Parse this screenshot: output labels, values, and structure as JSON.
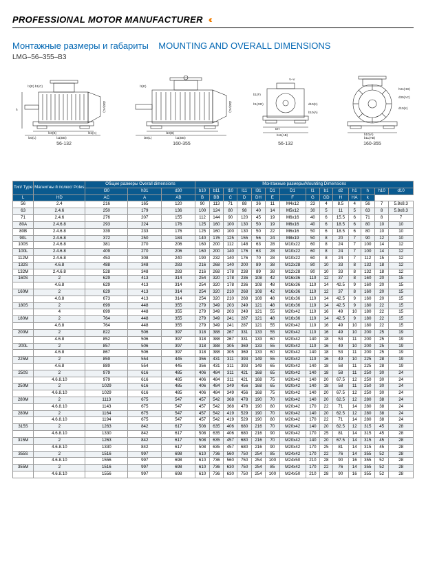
{
  "header": {
    "title": "PROFESSIONAL MOTOR MANUFACTURER",
    "arrows": "‹‹‹"
  },
  "subtitle_ru": "Монтажные размеры и габариты",
  "subtitle_en": "MOUNTING AND OVERALL DIMENSIONS",
  "model": "LMG–56–355–B3",
  "drawings": {
    "labels": [
      "56-132",
      "160-355",
      "56-132",
      "160-355"
    ]
  },
  "table": {
    "group_headers": {
      "overall": "Общие размеры\\nOverall dimensions",
      "mounting": "Монтажные размеры/Mounting Dimensions"
    },
    "columns_top": [
      "Тип/\\nType",
      "Магнитны\\nй полюс/\\nPoles",
      "l30",
      "h31",
      "d30",
      "b10",
      "b11",
      "l10",
      "l11",
      "l31",
      "D1",
      "D1",
      "l1",
      "b1",
      "d2",
      "h1",
      "h",
      "h10",
      "d10"
    ],
    "columns_sub": [
      "",
      "",
      "L",
      "HD",
      "AC",
      "A",
      "AB",
      "B",
      "BB",
      "C",
      "D",
      "DH",
      "E",
      "F",
      "G",
      "GD",
      "H",
      "HA",
      "k"
    ],
    "rows": [
      [
        "56",
        "2.4",
        "216",
        "165",
        "120",
        "90",
        "113",
        "71",
        "88",
        "36",
        "11",
        "M4x12",
        "23",
        "4",
        "8.5",
        "4",
        "56",
        "7",
        "5.8x8.3"
      ],
      [
        "63",
        "2.4.6",
        "250",
        "179",
        "136",
        "100",
        "124",
        "80",
        "98",
        "40",
        "14",
        "M5x12",
        "30",
        "5",
        "11",
        "5",
        "63",
        "8",
        "5.8x8.3"
      ],
      [
        "71",
        "2.4.6",
        "276",
        "207",
        "155",
        "112",
        "144",
        "90",
        "120",
        "45",
        "19",
        "M6x16",
        "40",
        "6",
        "15.5",
        "6",
        "71",
        "8",
        "7"
      ],
      [
        "80A",
        "2.4.6.8",
        "293",
        "224",
        "176",
        "125",
        "160",
        "100",
        "130",
        "50",
        "19",
        "M6x16",
        "40",
        "6",
        "18.5",
        "6",
        "80",
        "10",
        "10"
      ],
      [
        "80B",
        "2.4.6.8",
        "339",
        "233",
        "176",
        "125",
        "160",
        "100",
        "130",
        "50",
        "22",
        "M6x16",
        "50",
        "6",
        "18.5",
        "6",
        "80",
        "10",
        "10"
      ],
      [
        "90L",
        "2.4.6.8",
        "372",
        "250",
        "184",
        "140",
        "176",
        "125",
        "155",
        "56",
        "24",
        "M8x19",
        "50",
        "8",
        "20",
        "7",
        "90",
        "12",
        "10"
      ],
      [
        "100S",
        "2.4.6.8",
        "381",
        "270",
        "206",
        "160",
        "200",
        "112",
        "148",
        "63",
        "28",
        "M10x22",
        "60",
        "8",
        "24",
        "7",
        "100",
        "14",
        "12"
      ],
      [
        "100L",
        "2.4.6.8",
        "409",
        "270",
        "206",
        "160",
        "200",
        "140",
        "176",
        "63",
        "28",
        "M10x22",
        "60",
        "8",
        "24",
        "7",
        "100",
        "14",
        "12"
      ],
      [
        "112M",
        "2.4.6.8",
        "453",
        "308",
        "240",
        "190",
        "232",
        "140",
        "176",
        "70",
        "28",
        "M10x22",
        "60",
        "8",
        "24",
        "7",
        "112",
        "15",
        "12"
      ],
      [
        "132S",
        "4.6.8",
        "488",
        "348",
        "283",
        "216",
        "268",
        "140",
        "200",
        "89",
        "38",
        "M12x28",
        "80",
        "10",
        "33",
        "8",
        "132",
        "18",
        "12"
      ],
      [
        "132M",
        "2.4.6.8",
        "528",
        "348",
        "283",
        "216",
        "268",
        "178",
        "238",
        "89",
        "38",
        "M12x28",
        "80",
        "10",
        "33",
        "8",
        "132",
        "18",
        "12"
      ],
      [
        "160S",
        "2",
        "629",
        "413",
        "314",
        "254",
        "320",
        "178",
        "236",
        "108",
        "42",
        "M16x36",
        "110",
        "12",
        "37",
        "8",
        "160",
        "20",
        "15"
      ],
      [
        "",
        "4.6.8",
        "629",
        "413",
        "314",
        "254",
        "320",
        "178",
        "236",
        "108",
        "48",
        "M16x36",
        "110",
        "14",
        "42.5",
        "9",
        "160",
        "20",
        "15"
      ],
      [
        "160M",
        "2",
        "629",
        "413",
        "314",
        "254",
        "320",
        "210",
        "268",
        "108",
        "42",
        "M16x36",
        "110",
        "12",
        "37",
        "8",
        "160",
        "20",
        "15"
      ],
      [
        "",
        "4.6.8",
        "673",
        "413",
        "314",
        "254",
        "320",
        "210",
        "268",
        "108",
        "48",
        "M16x36",
        "110",
        "14",
        "42.5",
        "9",
        "160",
        "20",
        "15"
      ],
      [
        "180S",
        "2",
        "699",
        "448",
        "355",
        "279",
        "349",
        "203",
        "249",
        "121",
        "48",
        "M16x36",
        "110",
        "14",
        "42.5",
        "9",
        "180",
        "22",
        "15"
      ],
      [
        "",
        "4",
        "699",
        "448",
        "355",
        "279",
        "349",
        "203",
        "249",
        "121",
        "55",
        "M20x42",
        "110",
        "16",
        "49",
        "10",
        "180",
        "22",
        "15"
      ],
      [
        "180M",
        "2",
        "764",
        "448",
        "355",
        "279",
        "349",
        "241",
        "287",
        "121",
        "48",
        "M16x36",
        "110",
        "14",
        "42.5",
        "9",
        "180",
        "22",
        "15"
      ],
      [
        "",
        "4.6.8",
        "764",
        "448",
        "355",
        "279",
        "349",
        "241",
        "287",
        "121",
        "55",
        "M20x42",
        "110",
        "16",
        "49",
        "10",
        "180",
        "22",
        "15"
      ],
      [
        "200M",
        "2",
        "822",
        "506",
        "397",
        "318",
        "388",
        "267",
        "331",
        "133",
        "55",
        "M20x42",
        "110",
        "16",
        "49",
        "10",
        "200",
        "25",
        "19"
      ],
      [
        "",
        "4.6.8",
        "852",
        "506",
        "397",
        "318",
        "388",
        "267",
        "331",
        "133",
        "60",
        "M20x42",
        "140",
        "18",
        "53",
        "11",
        "200",
        "25",
        "19"
      ],
      [
        "200L",
        "2",
        "857",
        "506",
        "397",
        "318",
        "388",
        "305",
        "369",
        "133",
        "55",
        "M20x42",
        "110",
        "16",
        "49",
        "10",
        "200",
        "25",
        "19"
      ],
      [
        "",
        "4.6.8",
        "867",
        "506",
        "397",
        "318",
        "388",
        "305",
        "369",
        "133",
        "60",
        "M20x42",
        "140",
        "18",
        "53",
        "11",
        "200",
        "25",
        "19"
      ],
      [
        "225M",
        "2",
        "859",
        "554",
        "445",
        "356",
        "431",
        "311",
        "393",
        "149",
        "55",
        "M20x42",
        "110",
        "16",
        "49",
        "10",
        "225",
        "28",
        "19"
      ],
      [
        "",
        "4.6.8",
        "889",
        "554",
        "445",
        "356",
        "431",
        "311",
        "393",
        "149",
        "65",
        "M20x42",
        "140",
        "18",
        "58",
        "11",
        "225",
        "28",
        "19"
      ],
      [
        "250S",
        "2",
        "979",
        "616",
        "485",
        "406",
        "484",
        "311",
        "421",
        "168",
        "65",
        "M20x42",
        "140",
        "18",
        "58",
        "11",
        "250",
        "30",
        "24"
      ],
      [
        "",
        "4.6.8.10",
        "979",
        "616",
        "485",
        "406",
        "484",
        "311",
        "421",
        "168",
        "75",
        "M20x42",
        "140",
        "20",
        "67.5",
        "12",
        "250",
        "30",
        "24"
      ],
      [
        "250M",
        "2",
        "1029",
        "616",
        "485",
        "406",
        "484",
        "349",
        "456",
        "168",
        "65",
        "M20x42",
        "140",
        "18",
        "58",
        "11",
        "250",
        "30",
        "24"
      ],
      [
        "",
        "4.6.8.10",
        "1029",
        "616",
        "485",
        "406",
        "484",
        "349",
        "456",
        "168",
        "75",
        "M20x42",
        "140",
        "20",
        "67.5",
        "12",
        "250",
        "30",
        "24"
      ],
      [
        "280M",
        "2",
        "1113",
        "675",
        "547",
        "457",
        "542",
        "368",
        "478",
        "190",
        "70",
        "M20x42",
        "140",
        "20",
        "62.5",
        "12",
        "280",
        "38",
        "24"
      ],
      [
        "",
        "4.6.8.10",
        "1143",
        "675",
        "547",
        "457",
        "542",
        "368",
        "478",
        "190",
        "80",
        "M20x42",
        "170",
        "22",
        "71",
        "14",
        "280",
        "38",
        "24"
      ],
      [
        "280M",
        "2",
        "1164",
        "675",
        "547",
        "457",
        "542",
        "419",
        "529",
        "190",
        "70",
        "M20x42",
        "140",
        "20",
        "62.5",
        "12",
        "280",
        "38",
        "24"
      ],
      [
        "",
        "4.6.8.10",
        "1194",
        "675",
        "547",
        "457",
        "542",
        "419",
        "529",
        "190",
        "80",
        "M20x42",
        "170",
        "22",
        "71",
        "14",
        "280",
        "38",
        "24"
      ],
      [
        "315S",
        "2",
        "1263",
        "842",
        "617",
        "508",
        "635",
        "406",
        "680",
        "216",
        "70",
        "M20x42",
        "140",
        "20",
        "62.5",
        "12",
        "315",
        "45",
        "28"
      ],
      [
        "",
        "4.6.8.10",
        "1330",
        "842",
        "617",
        "508",
        "635",
        "406",
        "680",
        "216",
        "90",
        "M20x42",
        "170",
        "25",
        "81",
        "14",
        "315",
        "45",
        "28"
      ],
      [
        "315M",
        "2",
        "1263",
        "842",
        "617",
        "508",
        "635",
        "457",
        "680",
        "216",
        "70",
        "M20x42",
        "140",
        "20",
        "67.5",
        "14",
        "315",
        "45",
        "28"
      ],
      [
        "",
        "4.6.8.10",
        "1330",
        "842",
        "617",
        "508",
        "635",
        "457",
        "680",
        "216",
        "90",
        "M20x42",
        "170",
        "25",
        "81",
        "14",
        "315",
        "45",
        "28"
      ],
      [
        "355S",
        "2",
        "1516",
        "997",
        "698",
        "610",
        "736",
        "560",
        "750",
        "254",
        "85",
        "M24x42",
        "170",
        "22",
        "76",
        "14",
        "355",
        "52",
        "28"
      ],
      [
        "",
        "4.6.8.10",
        "1556",
        "997",
        "698",
        "610",
        "736",
        "560",
        "750",
        "254",
        "100",
        "M24x50",
        "210",
        "28",
        "90",
        "16",
        "355",
        "52",
        "28"
      ],
      [
        "355M",
        "2",
        "1516",
        "997",
        "698",
        "610",
        "736",
        "630",
        "750",
        "254",
        "85",
        "M24x42",
        "170",
        "22",
        "76",
        "14",
        "355",
        "52",
        "28"
      ],
      [
        "",
        "4.6.8.10",
        "1556",
        "997",
        "698",
        "610",
        "736",
        "630",
        "750",
        "254",
        "100",
        "M24x50",
        "210",
        "28",
        "90",
        "16",
        "355",
        "52",
        "28"
      ]
    ]
  }
}
